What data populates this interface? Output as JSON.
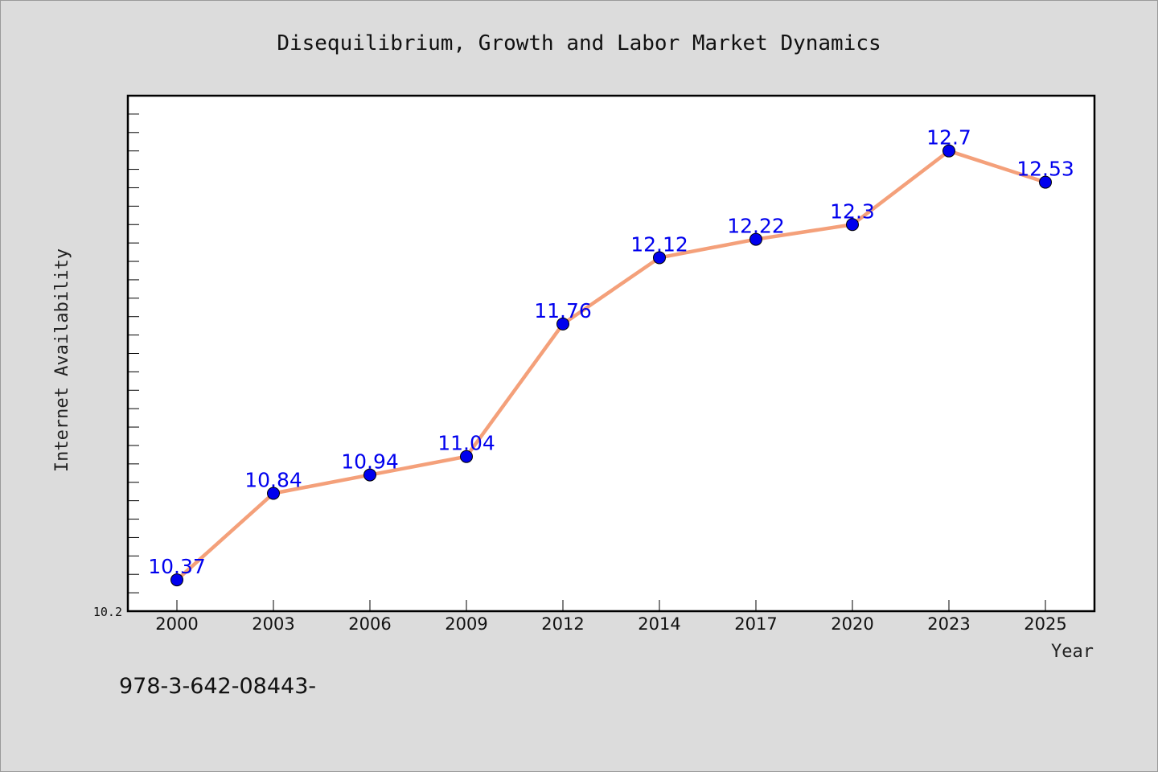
{
  "chart_data": {
    "type": "line",
    "title": "Disequilibrium, Growth and Labor Market Dynamics",
    "xlabel": "Year",
    "ylabel": "Internet Availability",
    "categories": [
      "2000",
      "2003",
      "2006",
      "2009",
      "2012",
      "2014",
      "2017",
      "2020",
      "2023",
      "2025"
    ],
    "series": [
      {
        "values": [
          10.37,
          10.84,
          10.94,
          11.04,
          11.76,
          12.12,
          12.22,
          12.3,
          12.7,
          12.53
        ],
        "labels": [
          "10.37",
          "10.84",
          "10.94",
          "11.04",
          "11.76",
          "12.12",
          "12.22",
          "12.3",
          "12.7",
          "12.53"
        ]
      }
    ],
    "ylim": [
      10.2,
      13.0
    ],
    "y_tick_label": "10.2",
    "grid": false,
    "line_color": "#f4a07a",
    "marker_color": "#0000ee",
    "label_color": "#0000ee",
    "background_color": "#dcdcdc",
    "plot_background": "#ffffff"
  },
  "footer_code": "978-3-642-08443-"
}
